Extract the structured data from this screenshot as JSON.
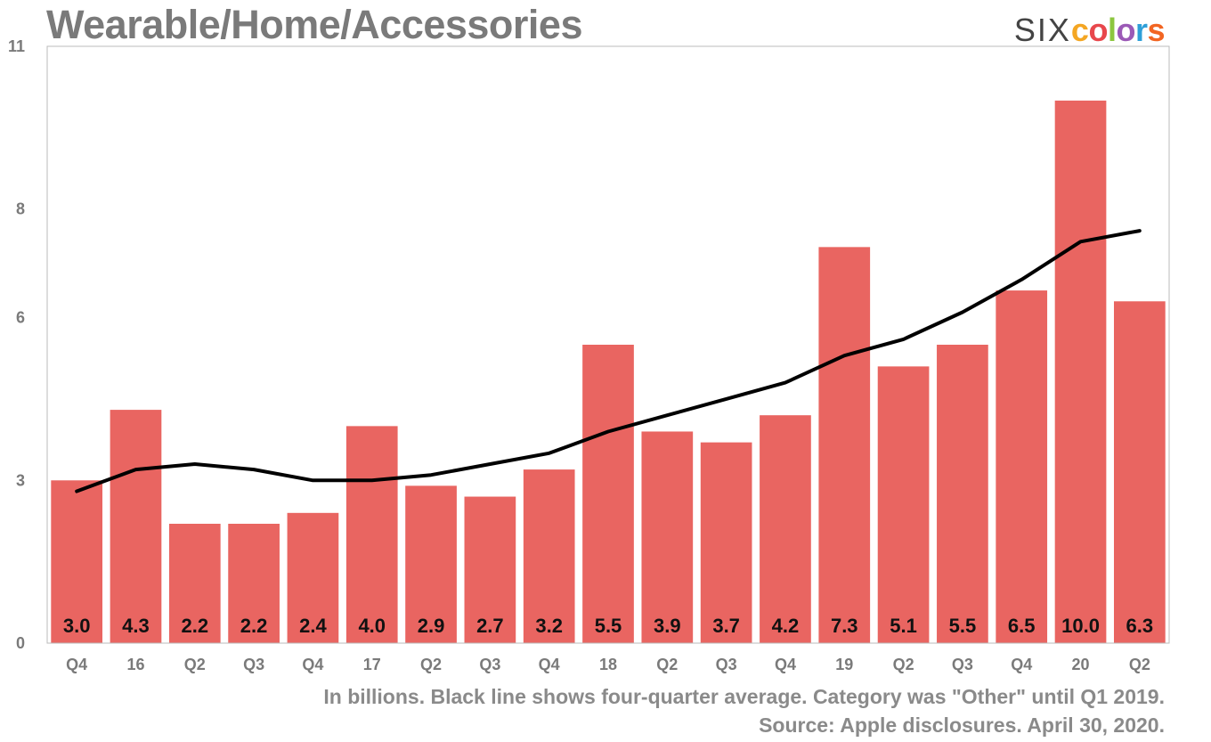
{
  "title": "Wearable/Home/Accessories",
  "logo": {
    "prefix": "SIX",
    "word": "colors",
    "letter_colors": [
      "#f4a623",
      "#e8474c",
      "#8cc63f",
      "#9b59b6",
      "#2e9fd8",
      "#f26522"
    ]
  },
  "footnote_1": "In billions. Black line shows four-quarter average. Category was \"Other\" until Q1 2019.",
  "footnote_2": "Source: Apple disclosures. April 30, 2020.",
  "colors": {
    "bar": "#e96561",
    "line": "#000000",
    "axis_text": "#7a7a7a",
    "frame": "#bbbbbb"
  },
  "chart_data": {
    "type": "bar",
    "categories": [
      "Q4",
      "16",
      "Q2",
      "Q3",
      "Q4",
      "17",
      "Q2",
      "Q3",
      "Q4",
      "18",
      "Q2",
      "Q3",
      "Q4",
      "19",
      "Q2",
      "Q3",
      "Q4",
      "20",
      "Q2"
    ],
    "values": [
      3.0,
      4.3,
      2.2,
      2.2,
      2.4,
      4.0,
      2.9,
      2.7,
      3.2,
      5.5,
      3.9,
      3.7,
      4.2,
      7.3,
      5.1,
      5.5,
      6.5,
      10.0,
      6.3
    ],
    "value_labels": [
      "3.0",
      "4.3",
      "2.2",
      "2.2",
      "2.4",
      "4.0",
      "2.9",
      "2.7",
      "3.2",
      "5.5",
      "3.9",
      "3.7",
      "4.2",
      "7.3",
      "5.1",
      "5.5",
      "6.5",
      "10.0",
      "6.3"
    ],
    "line_values": [
      2.8,
      3.2,
      3.3,
      3.2,
      3.0,
      3.0,
      3.1,
      3.3,
      3.5,
      3.9,
      4.2,
      4.5,
      4.8,
      5.3,
      5.6,
      6.1,
      6.7,
      7.4,
      7.6
    ],
    "ylim": [
      0,
      11
    ],
    "yticks": [
      0,
      3,
      6,
      8,
      11
    ],
    "ytick_labels": [
      "0",
      "3",
      "6",
      "8",
      "11"
    ],
    "grid": false
  }
}
